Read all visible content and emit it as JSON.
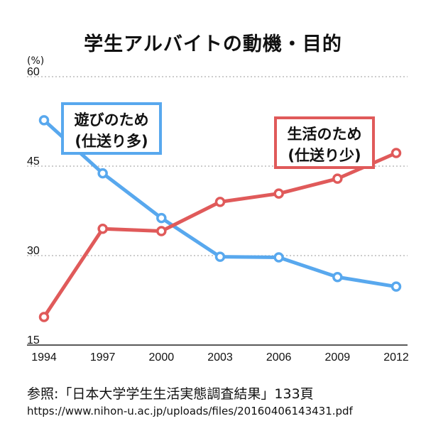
{
  "title": "学生アルバイトの動機・目的",
  "unit": "(%)",
  "chart_data": {
    "type": "line",
    "title": "学生アルバイトの動機・目的",
    "x": [
      "1994",
      "1997",
      "2000",
      "2003",
      "2006",
      "2009",
      "2012"
    ],
    "ylim": [
      15,
      60
    ],
    "yticks": [
      "15",
      "30",
      "45",
      "60"
    ],
    "grid": true,
    "series": [
      {
        "name": "遊びのため (仕送り多)",
        "color": "#58a8ee",
        "values": [
          52.7,
          43.8,
          36.3,
          29.8,
          29.7,
          26.4,
          24.8
        ]
      },
      {
        "name": "生活のため (仕送り少)",
        "color": "#e05a5a",
        "values": [
          19.7,
          34.5,
          34.1,
          39.0,
          40.4,
          42.9,
          47.2
        ]
      }
    ]
  },
  "legend": {
    "play_line1": "遊びのため",
    "play_line2": "(仕送り多)",
    "living_line1": "生活のため",
    "living_line2": "(仕送り少)"
  },
  "source": {
    "line": "参照:「日本大学学生生活実態調査結果」133頁",
    "url": "https://www.nihon-u.ac.jp/uploads/files/20160406143431.pdf"
  }
}
